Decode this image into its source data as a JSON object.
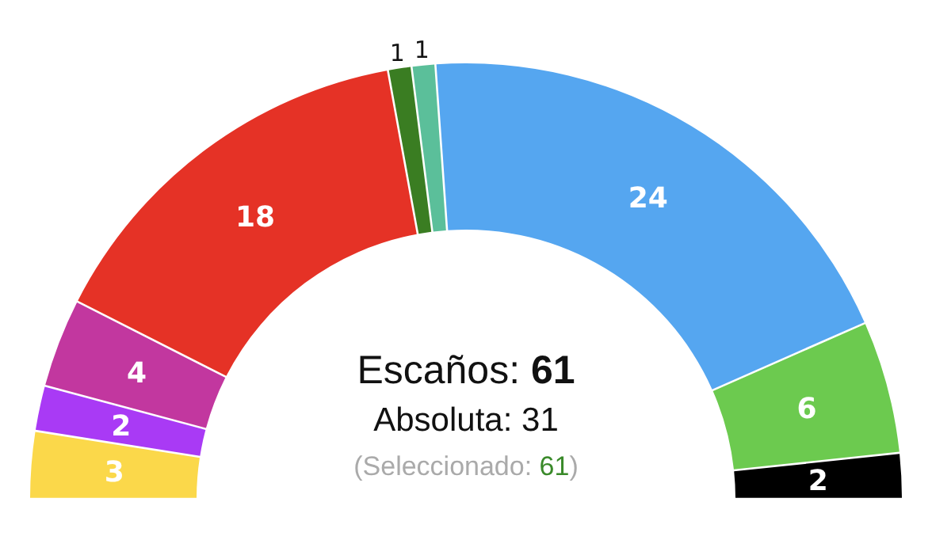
{
  "chart_data": {
    "type": "donut",
    "categories": [
      null,
      null,
      null,
      null,
      null,
      null,
      null,
      null,
      null
    ],
    "values": [
      3,
      2,
      4,
      18,
      1,
      1,
      24,
      6,
      2
    ],
    "colors": [
      "#fbd84a",
      "#a93af5",
      "#c2379f",
      "#e53226",
      "#3a7d22",
      "#5bbf9a",
      "#55a6f0",
      "#6cca4f",
      "#000000"
    ],
    "data_labels": true,
    "annotations": [
      "Escaños: 61",
      "Absoluta: 31",
      "(Seleccionado: 61)"
    ]
  }
}
